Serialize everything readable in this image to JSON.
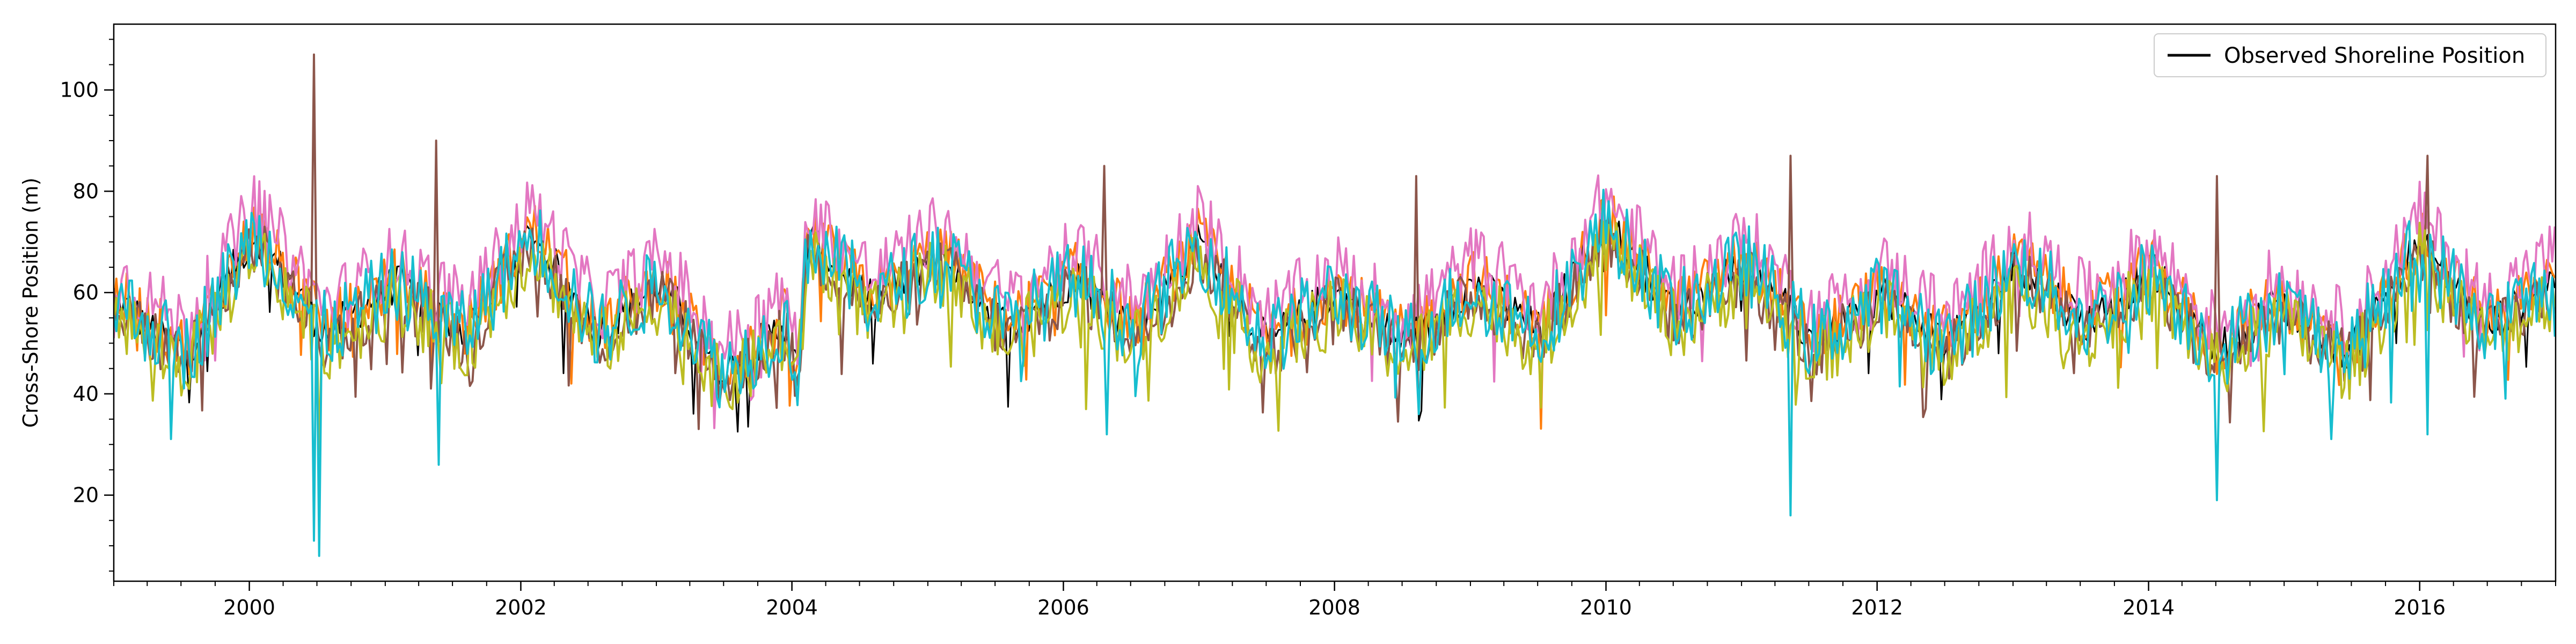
{
  "chart_data": {
    "type": "line",
    "title": "",
    "xlabel": "",
    "ylabel": "Cross-Shore Position (m)",
    "xlim": [
      "1999-01-01",
      "2017-01-01"
    ],
    "ylim": [
      3,
      113
    ],
    "x_ticks": [
      "2000",
      "2002",
      "2004",
      "2006",
      "2008",
      "2010",
      "2012",
      "2014",
      "2016"
    ],
    "y_ticks": [
      20,
      40,
      60,
      80,
      100
    ],
    "grid": false,
    "legend": {
      "placement": "top-right",
      "entries": [
        "Observed Shoreline Position"
      ]
    },
    "series_interval_days": 7,
    "series": [
      {
        "name": "Observed Shoreline Position",
        "color": "#000000",
        "role": "observed"
      },
      {
        "color": "#ff7f0e",
        "role": "model"
      },
      {
        "color": "#8c564b",
        "role": "model"
      },
      {
        "color": "#e377c2",
        "role": "model"
      },
      {
        "color": "#bcbd22",
        "role": "model"
      },
      {
        "color": "#17becf",
        "role": "model"
      }
    ],
    "seasonal_peaks": [
      [
        "1999-01-15",
        58
      ],
      [
        "2000-01-15",
        72
      ],
      [
        "2001-02-01",
        62
      ],
      [
        "2002-02-01",
        72
      ],
      [
        "2003-01-15",
        62
      ],
      [
        "2003-12-15",
        54
      ],
      [
        "2004-02-15",
        71
      ],
      [
        "2005-02-01",
        68
      ],
      [
        "2006-02-01",
        63
      ],
      [
        "2007-01-01",
        70
      ],
      [
        "2008-01-01",
        60
      ],
      [
        "2009-01-15",
        62
      ],
      [
        "2010-01-01",
        74
      ],
      [
        "2011-01-15",
        66
      ],
      [
        "2012-01-15",
        60
      ],
      [
        "2013-01-15",
        66
      ],
      [
        "2014-01-15",
        64
      ],
      [
        "2014-12-15",
        58
      ],
      [
        "2016-01-01",
        70
      ],
      [
        "2016-12-31",
        63
      ]
    ],
    "spikes": [
      {
        "date": "2000-06-25",
        "series": [
          "#8c564b"
        ],
        "value": 107
      },
      {
        "date": "2000-06-25",
        "series": [
          "#17becf"
        ],
        "value": 11
      },
      {
        "date": "2000-07-10",
        "series": [
          "#17becf"
        ],
        "value": 8
      },
      {
        "date": "2000-07-10",
        "series": [
          "#bcbd22"
        ],
        "value": 28
      },
      {
        "date": "2001-05-20",
        "series": [
          "#8c564b"
        ],
        "value": 90
      },
      {
        "date": "2001-05-25",
        "series": [
          "#17becf"
        ],
        "value": 26
      },
      {
        "date": "2006-04-20",
        "series": [
          "#8c564b"
        ],
        "value": 85
      },
      {
        "date": "2006-04-25",
        "series": [
          "#17becf"
        ],
        "value": 32
      },
      {
        "date": "2008-08-10",
        "series": [
          "#8c564b"
        ],
        "value": 83
      },
      {
        "date": "2008-08-15",
        "series": [
          "#17becf"
        ],
        "value": 36
      },
      {
        "date": "2011-05-10",
        "series": [
          "#8c564b"
        ],
        "value": 87
      },
      {
        "date": "2011-05-15",
        "series": [
          "#17becf"
        ],
        "value": 16
      },
      {
        "date": "2014-07-05",
        "series": [
          "#17becf"
        ],
        "value": 19
      },
      {
        "date": "2014-07-05",
        "series": [
          "#8c564b"
        ],
        "value": 83
      },
      {
        "date": "2016-01-25",
        "series": [
          "#8c564b"
        ],
        "value": 87
      },
      {
        "date": "2016-01-25",
        "series": [
          "#17becf"
        ],
        "value": 32
      }
    ]
  }
}
